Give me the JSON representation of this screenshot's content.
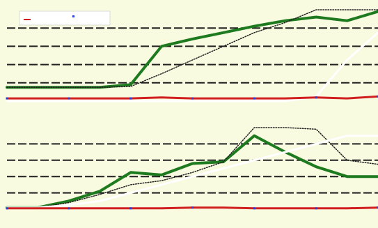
{
  "colors": {
    "background": "#f8fbe0",
    "grid": "#1f1f1f",
    "green_series": "#1e7a1e",
    "black_series": "#222222",
    "white_series": "#ffffff",
    "red_series": "#d11f1f",
    "blue_markers": "#2c3fd6",
    "legend_fill": "#ffffff",
    "legend_border": "#d7ddd0"
  },
  "chart_data": [
    {
      "type": "line",
      "title": "",
      "xlabel": "",
      "ylabel": "",
      "x": [
        0,
        1,
        2,
        3,
        4,
        5,
        6,
        7,
        8,
        9,
        10,
        11,
        12
      ],
      "ylim": [
        0,
        100
      ],
      "grid": true,
      "legend": "top-left",
      "series": [
        {
          "values": [
            15,
            15,
            15,
            15,
            18,
            60,
            68,
            75,
            82,
            88,
            92,
            88,
            98
          ],
          "color": "green_series",
          "width": 4
        },
        {
          "values": [
            15,
            15,
            15,
            15,
            16,
            30,
            45,
            60,
            75,
            86,
            100,
            100,
            100
          ],
          "color": "black_series",
          "width": 1.5,
          "dash": "1.5 2"
        },
        {
          "values": [
            0,
            0,
            0,
            0,
            0,
            0,
            0,
            0,
            0,
            0,
            5,
            45,
            75
          ],
          "color": "white_series",
          "width": 3
        },
        {
          "values": [
            3,
            3,
            3,
            3,
            3,
            4,
            3,
            3,
            3,
            3,
            4,
            3,
            5
          ],
          "color": "red_series",
          "width": 3
        }
      ]
    },
    {
      "type": "line",
      "title": "",
      "xlabel": "",
      "ylabel": "",
      "x": [
        0,
        1,
        2,
        3,
        4,
        5,
        6,
        7,
        8,
        9,
        10,
        11,
        12
      ],
      "ylim": [
        0,
        100
      ],
      "grid": true,
      "legend": "none",
      "series": [
        {
          "values": [
            2,
            2,
            10,
            22,
            45,
            42,
            56,
            58,
            90,
            70,
            52,
            40,
            40
          ],
          "color": "green_series",
          "width": 4
        },
        {
          "values": [
            2,
            2,
            8,
            18,
            30,
            35,
            45,
            58,
            100,
            100,
            98,
            60,
            55
          ],
          "color": "black_series",
          "width": 1.5,
          "dash": "1.5 2"
        },
        {
          "values": [
            2,
            2,
            5,
            10,
            20,
            30,
            40,
            50,
            60,
            70,
            80,
            90,
            90
          ],
          "color": "white_series",
          "width": 3
        },
        {
          "values": [
            1,
            1,
            1,
            1,
            1,
            1,
            2,
            2,
            1,
            1,
            1,
            1,
            2
          ],
          "color": "red_series",
          "width": 3
        }
      ]
    }
  ]
}
